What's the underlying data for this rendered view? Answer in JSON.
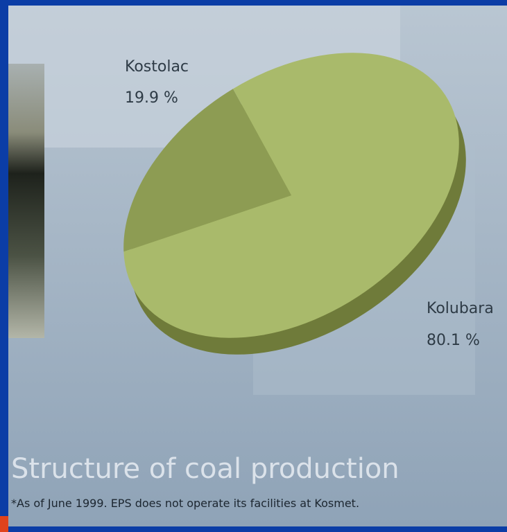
{
  "chart_data": {
    "type": "pie",
    "categories": [
      "Kostolac",
      "Kolubara"
    ],
    "values": [
      19.9,
      80.1
    ],
    "value_labels": [
      "19.9 %",
      "80.1 %"
    ],
    "colors": [
      "#8d9c53",
      "#a9ba6b"
    ],
    "title": "Structure of coal production",
    "note": "*As of June 1999. EPS does not operate its facilities at Kosmet."
  }
}
